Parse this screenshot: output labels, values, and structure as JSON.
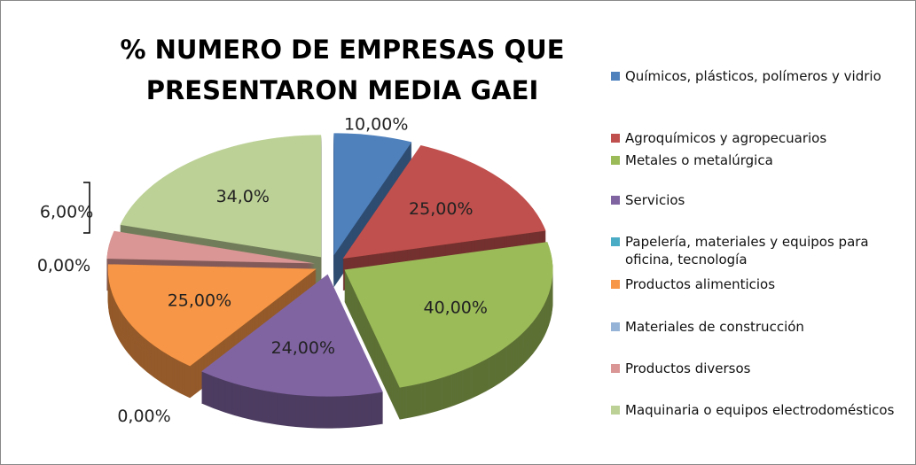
{
  "chart_data": {
    "type": "pie",
    "title": "% NUMERO DE EMPRESAS QUE PRESENTARON MEDIA GAEI",
    "categories": [
      "Químicos, plásticos, polímeros  y vidrio",
      "Agroquímicos y agropecuarios",
      "Metales o metalúrgica",
      "Servicios",
      "Papelería, materiales y equipos para oficina, tecnología",
      "Productos alimenticios",
      "Materiales de construcción",
      "Productos diversos",
      "Maquinaria o equipos electrodomésticos"
    ],
    "values": [
      10,
      25,
      40,
      24,
      0,
      25,
      0,
      6,
      34
    ],
    "value_labels": [
      "10,00%",
      "25,00%",
      "40,00%",
      "24,00%",
      "0,00%",
      "25,00%",
      "0,00%",
      "6,00%",
      "34,0%"
    ],
    "colors": [
      "#4f81bd",
      "#c0504d",
      "#9bbb59",
      "#8064a2",
      "#4bacc6",
      "#f79646",
      "#95b3d7",
      "#d99694",
      "#bcd196"
    ],
    "legend": "right"
  }
}
